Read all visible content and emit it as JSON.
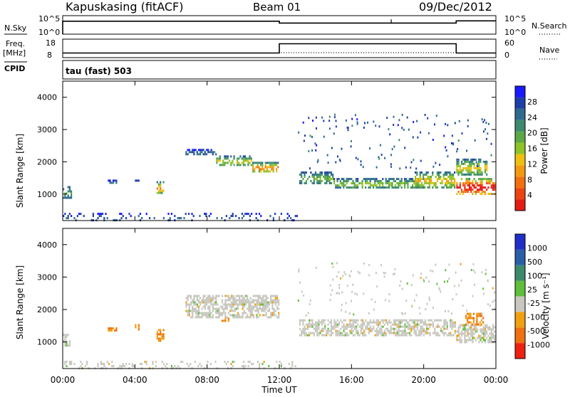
{
  "header": {
    "station": "Kapuskasing (fitACF)",
    "beam": "Beam 01",
    "date": "09/Dec/2012"
  },
  "top_panels": {
    "nsky_label": "N.Sky",
    "nsky_ticks": [
      "10^5",
      "10^0"
    ],
    "nsearch_label": "N.Search",
    "nsearch_ticks": [
      "10^5",
      "10^0"
    ],
    "freq_label": "Freq.",
    "freq_unit": "[MHz]",
    "freq_ticks": [
      "18",
      "8"
    ],
    "nave_label": "Nave",
    "nave_ticks": [
      "60",
      "0"
    ],
    "cpid_label": "CPID",
    "cpid_value": "tau (fast) 503"
  },
  "chart_data": [
    {
      "type": "heatmap",
      "panel": "power",
      "ylabel": "Slant Range [km]",
      "xlabel": "Time UT",
      "xlim_hours": [
        0,
        24
      ],
      "ylim": [
        180,
        4500
      ],
      "yticks": [
        "4000",
        "3000",
        "2000",
        "1000"
      ],
      "xticks": [
        "00:00",
        "04:00",
        "08:00",
        "12:00",
        "16:00",
        "20:00",
        "00:00"
      ],
      "colorbar_label": "Power [dB]",
      "colorbar_ticks": [
        "28",
        "24",
        "20",
        "16",
        "12",
        "8",
        "4"
      ],
      "colorbar_colors": [
        "#1a1aff",
        "#1f3fa8",
        "#2e6a8f",
        "#3d8a6e",
        "#5ca847",
        "#8fc32a",
        "#f0c010",
        "#f59a10",
        "#f27010",
        "#ee4410",
        "#e61a14"
      ],
      "echo_regions": [
        {
          "t0": 0.0,
          "t1": 0.5,
          "r0": 850,
          "r1": 1250,
          "level": 0.3
        },
        {
          "t0": 2.5,
          "t1": 3.0,
          "r0": 1350,
          "r1": 1450,
          "level": 0.2
        },
        {
          "t0": 4.0,
          "t1": 4.3,
          "r0": 1350,
          "r1": 1450,
          "level": 0.25
        },
        {
          "t0": 5.2,
          "t1": 5.6,
          "r0": 1000,
          "r1": 1400,
          "level": 0.55
        },
        {
          "t0": 6.8,
          "t1": 8.5,
          "r0": 2200,
          "r1": 2400,
          "level": 0.2
        },
        {
          "t0": 8.5,
          "t1": 10.5,
          "r0": 1900,
          "r1": 2200,
          "level": 0.45
        },
        {
          "t0": 10.5,
          "t1": 12.0,
          "r0": 1650,
          "r1": 2000,
          "level": 0.6
        },
        {
          "t0": 13.1,
          "t1": 15.0,
          "r0": 1300,
          "r1": 1700,
          "level": 0.35
        },
        {
          "t0": 15.0,
          "t1": 20.0,
          "r0": 1150,
          "r1": 1500,
          "level": 0.4
        },
        {
          "t0": 19.5,
          "t1": 21.8,
          "r0": 1200,
          "r1": 1700,
          "level": 0.5
        },
        {
          "t0": 21.8,
          "t1": 24.0,
          "r0": 950,
          "r1": 1500,
          "level": 0.85
        },
        {
          "t0": 21.8,
          "t1": 23.5,
          "r0": 1600,
          "r1": 2100,
          "level": 0.45
        },
        {
          "t0": 0.0,
          "t1": 13.0,
          "r0": 180,
          "r1": 420,
          "level": 0.15
        }
      ]
    },
    {
      "type": "heatmap",
      "panel": "velocity",
      "ylabel": "Slant Range [km]",
      "xlabel": "Time UT",
      "xlim_hours": [
        0,
        24
      ],
      "ylim": [
        180,
        4500
      ],
      "yticks": [
        "4000",
        "3000",
        "2000",
        "1000"
      ],
      "xticks": [
        "00:00",
        "04:00",
        "08:00",
        "12:00",
        "16:00",
        "20:00",
        "00:00"
      ],
      "colorbar_label": "Velocity [m s⁻¹]",
      "colorbar_ticks": [
        "1000",
        "500",
        "100",
        "25",
        "-25",
        "-100",
        "-500",
        "-1000"
      ],
      "colorbar_colors": [
        "#1f2fc8",
        "#2a5fa8",
        "#3c8a6c",
        "#5fbf3a",
        "#c8c8c0",
        "#f0a010",
        "#f07010",
        "#ee2010"
      ],
      "echo_regions": [
        {
          "t0": 0.0,
          "t1": 0.4,
          "r0": 850,
          "r1": 1250,
          "vel": "ground"
        },
        {
          "t0": 2.5,
          "t1": 3.0,
          "r0": 1350,
          "r1": 1450,
          "vel": "neg"
        },
        {
          "t0": 4.0,
          "t1": 4.3,
          "r0": 1350,
          "r1": 1550,
          "vel": "neg"
        },
        {
          "t0": 5.2,
          "t1": 5.6,
          "r0": 1000,
          "r1": 1400,
          "vel": "neg"
        },
        {
          "t0": 6.8,
          "t1": 12.0,
          "r0": 1750,
          "r1": 2450,
          "vel": "ground"
        },
        {
          "t0": 8.8,
          "t1": 9.2,
          "r0": 1600,
          "r1": 1750,
          "vel": "neg"
        },
        {
          "t0": 13.1,
          "t1": 21.8,
          "r0": 1150,
          "r1": 1700,
          "vel": "ground"
        },
        {
          "t0": 21.8,
          "t1": 24.0,
          "r0": 950,
          "r1": 1550,
          "vel": "ground"
        },
        {
          "t0": 22.3,
          "t1": 23.3,
          "r0": 1500,
          "r1": 1900,
          "vel": "neg"
        },
        {
          "t0": 0.0,
          "t1": 13.0,
          "r0": 180,
          "r1": 420,
          "vel": "ground"
        }
      ]
    }
  ],
  "series_top": {
    "nsky_level": 0.7,
    "nsky_step_hour": 12.0,
    "nsky_level_after": 0.6,
    "nsky_step2_hour": 21.8,
    "nsky_level_final": 0.72,
    "freq_low_mhz": 10.5,
    "freq_high_mhz": 15.5,
    "freq_switch_up_hour": 12.0,
    "freq_switch_down_hour": 21.8
  }
}
